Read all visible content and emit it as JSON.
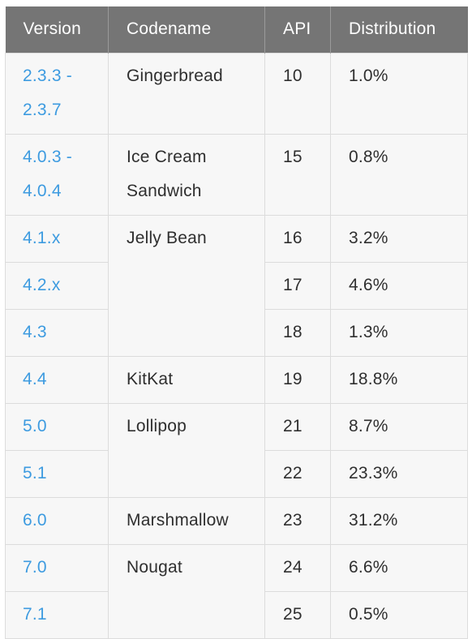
{
  "headers": {
    "version": "Version",
    "codename": "Codename",
    "api": "API",
    "distribution": "Distribution"
  },
  "rows": [
    {
      "version": "2.3.3 - 2.3.7",
      "codename": "Gingerbread",
      "api": "10",
      "distribution": "1.0%"
    },
    {
      "version": "4.0.3 - 4.0.4",
      "codename": "Ice Cream Sandwich",
      "api": "15",
      "distribution": "0.8%"
    },
    {
      "version": "4.1.x",
      "codename": "Jelly Bean",
      "api": "16",
      "distribution": "3.2%"
    },
    {
      "version": "4.2.x",
      "codename": "",
      "api": "17",
      "distribution": "4.6%"
    },
    {
      "version": "4.3",
      "codename": "",
      "api": "18",
      "distribution": "1.3%"
    },
    {
      "version": "4.4",
      "codename": "KitKat",
      "api": "19",
      "distribution": "18.8%"
    },
    {
      "version": "5.0",
      "codename": "Lollipop",
      "api": "21",
      "distribution": "8.7%"
    },
    {
      "version": "5.1",
      "codename": "",
      "api": "22",
      "distribution": "23.3%"
    },
    {
      "version": "6.0",
      "codename": "Marshmallow",
      "api": "23",
      "distribution": "31.2%"
    },
    {
      "version": "7.0",
      "codename": "Nougat",
      "api": "24",
      "distribution": "6.6%"
    },
    {
      "version": "7.1",
      "codename": "",
      "api": "25",
      "distribution": "0.5%"
    }
  ],
  "colors": {
    "header_bg": "#757575",
    "link": "#3d9be0",
    "body_bg": "#f7f7f7"
  }
}
